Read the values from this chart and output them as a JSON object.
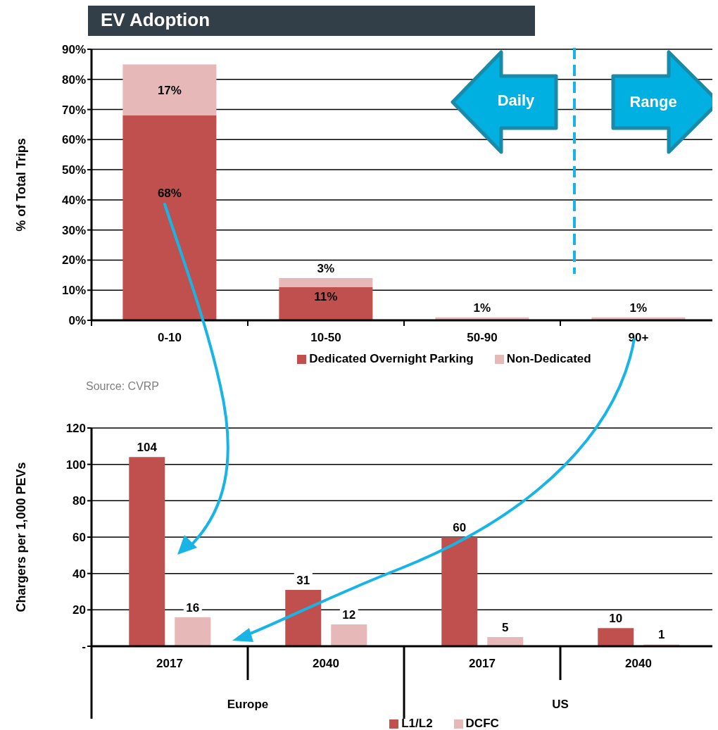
{
  "chart_data": [
    {
      "type": "bar",
      "title": "EV Adoption",
      "ylabel": "% of Total Trips",
      "categories": [
        "0-10",
        "10-50",
        "50-90",
        "90+"
      ],
      "stacked": true,
      "series": [
        {
          "name": "Dedicated Overnight Parking",
          "color": "#c0504d",
          "values": [
            68,
            11,
            0,
            0
          ],
          "value_labels": [
            "68%",
            "11%",
            null,
            null
          ]
        },
        {
          "name": "Non-Dedicated",
          "color": "#e6b9b8",
          "values": [
            17,
            3,
            1,
            1
          ],
          "value_labels": [
            "17%",
            "3%",
            "1%",
            "1%"
          ]
        }
      ],
      "ylim": [
        0,
        90
      ],
      "yticks": [
        {
          "value": 0,
          "label": "0%"
        },
        {
          "value": 10,
          "label": "10%"
        },
        {
          "value": 20,
          "label": "20%"
        },
        {
          "value": 30,
          "label": "30%"
        },
        {
          "value": 40,
          "label": "40%"
        },
        {
          "value": 50,
          "label": "50%"
        },
        {
          "value": 60,
          "label": "60%"
        },
        {
          "value": 70,
          "label": "70%"
        },
        {
          "value": 80,
          "label": "80%"
        },
        {
          "value": 90,
          "label": "90%"
        }
      ],
      "grid": "y",
      "legend": "bottom",
      "annotations": [
        "Daily",
        "Range",
        "Source: CVRP"
      ],
      "ref_lines": [
        {
          "axis": "x",
          "value": "90+",
          "color": "#19b4e6",
          "line_style": "dashed"
        }
      ]
    },
    {
      "type": "bar",
      "ylabel": "Chargers per 1,000 PEVs",
      "categories": [
        "2017",
        "2040",
        "2017",
        "2040"
      ],
      "series": [
        {
          "name": "L1/L2",
          "color": "#c0504d",
          "values": [
            104,
            31,
            60,
            10
          ]
        },
        {
          "name": "DCFC",
          "color": "#e6b9b8",
          "values": [
            16,
            12,
            5,
            1
          ]
        }
      ],
      "ylim": [
        0,
        120
      ],
      "yticks": [
        {
          "value": 0,
          "label": "-"
        },
        20,
        40,
        60,
        80,
        100,
        120
      ],
      "grid": "y",
      "legend": "bottom",
      "data_labels": true,
      "annotations": [
        "Europe",
        "US"
      ]
    }
  ]
}
